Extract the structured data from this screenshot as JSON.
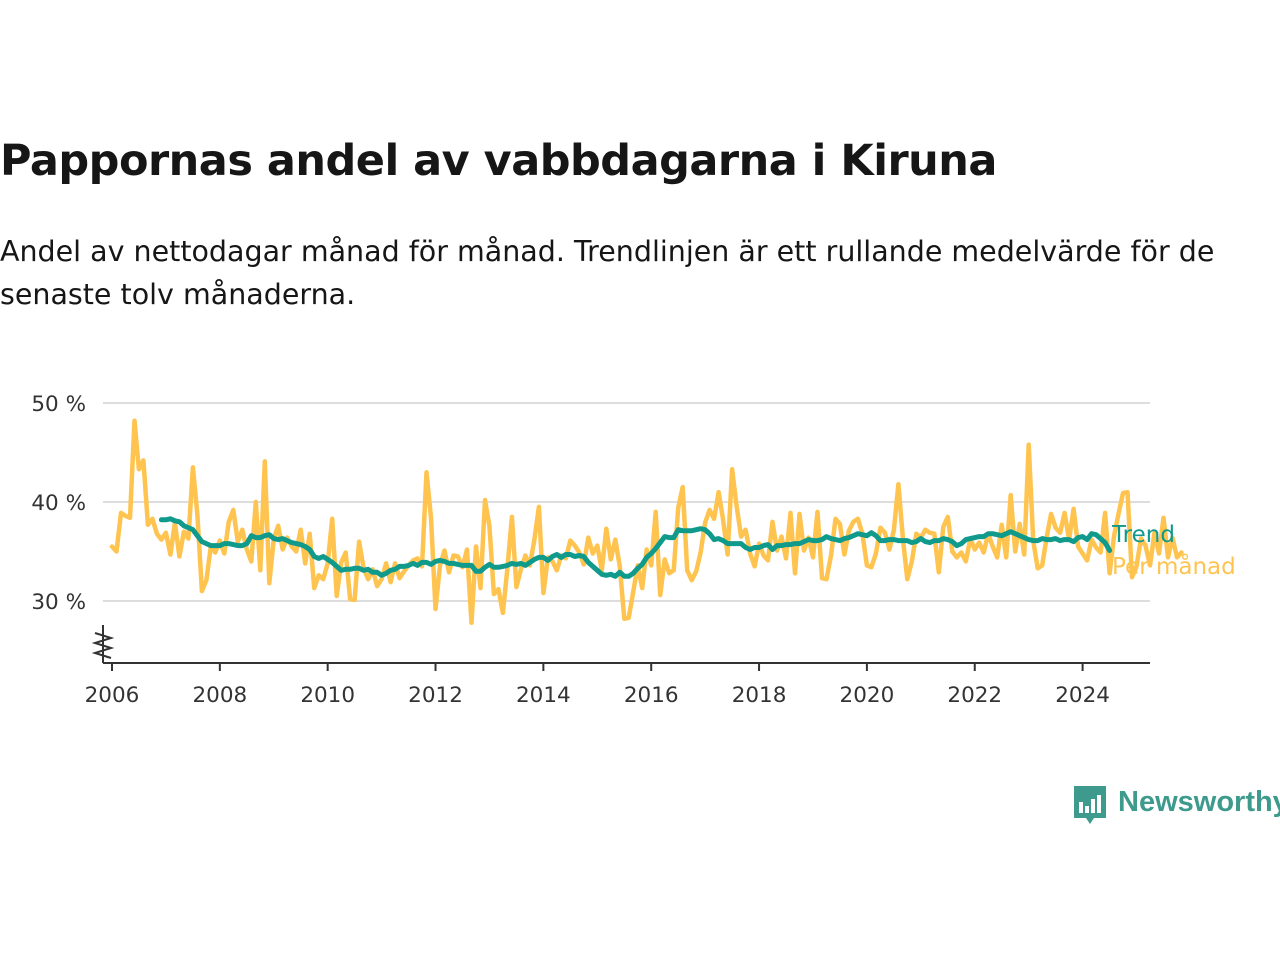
{
  "title": "Pappornas andel av vabbdagarna i Kiruna",
  "subtitle": "Andel av nettodagar månad för månad. Trendlinjen är ett rullande medelvärde för de senaste tolv månaderna.",
  "logo_text": "Newsworthy",
  "colors": {
    "trend": "#0f9a8c",
    "monthly": "#fec44f",
    "grid": "#dddddd",
    "axis": "#333333"
  },
  "chart_data": {
    "type": "line",
    "x_axis": {
      "ticks": [
        "2006",
        "2008",
        "2010",
        "2012",
        "2014",
        "2016",
        "2018",
        "2020",
        "2022",
        "2024"
      ],
      "range": [
        "2005-11",
        "2025-04"
      ]
    },
    "y_axis": {
      "ticks": [
        30,
        40,
        50
      ],
      "tick_labels": [
        "30 %",
        "40 %",
        "50 %"
      ],
      "range": [
        24,
        50
      ],
      "axis_break": true
    },
    "grid": true,
    "legend_position": "right, at line ends",
    "series": [
      {
        "name": "Per månad",
        "start": "2006-01",
        "values": [
          35.5,
          35.0,
          38.9,
          38.6,
          38.4,
          48.2,
          43.3,
          44.2,
          37.7,
          38.3,
          36.8,
          36.2,
          36.9,
          34.7,
          37.9,
          34.5,
          37.0,
          36.3,
          43.5,
          38.7,
          31.0,
          32.1,
          35.5,
          34.9,
          36.1,
          34.8,
          38.0,
          39.2,
          36.0,
          37.2,
          35.2,
          34.0,
          40.0,
          33.1,
          44.1,
          31.8,
          36.3,
          37.6,
          35.2,
          36.4,
          35.5,
          35.0,
          37.2,
          33.8,
          36.8,
          31.3,
          32.6,
          32.2,
          33.8,
          38.3,
          30.5,
          33.9,
          34.9,
          30.2,
          30.1,
          36.0,
          33.3,
          32.2,
          33.2,
          31.5,
          32.2,
          33.8,
          31.9,
          33.8,
          32.3,
          33.0,
          33.6,
          34.1,
          34.3,
          33.5,
          43.0,
          38.4,
          29.2,
          33.6,
          35.1,
          32.9,
          34.6,
          34.5,
          33.4,
          35.2,
          27.8,
          35.5,
          31.3,
          40.2,
          37.6,
          30.7,
          31.2,
          28.8,
          33.3,
          38.5,
          31.4,
          33.2,
          34.6,
          33.6,
          36.2,
          39.5,
          30.8,
          34.4,
          34.0,
          33.1,
          34.6,
          34.3,
          36.1,
          35.6,
          34.9,
          33.7,
          36.4,
          34.8,
          35.6,
          33.1,
          37.3,
          34.2,
          36.2,
          33.5,
          28.2,
          28.3,
          30.9,
          33.6,
          31.3,
          35.2,
          33.6,
          39.0,
          30.6,
          34.2,
          32.8,
          33.1,
          39.4,
          41.5,
          33.1,
          32.1,
          33.0,
          34.9,
          37.9,
          39.2,
          38.3,
          41.0,
          38.2,
          34.7,
          43.3,
          39.6,
          36.5,
          37.2,
          34.8,
          33.5,
          35.8,
          34.6,
          34.1,
          38.0,
          35.1,
          36.5,
          34.3,
          38.9,
          32.8,
          38.8,
          35.1,
          36.4,
          34.4,
          39.0,
          32.3,
          32.2,
          34.6,
          38.3,
          37.8,
          34.7,
          37.1,
          38.0,
          38.3,
          36.8,
          33.6,
          33.4,
          34.8,
          37.4,
          36.9,
          35.2,
          37.2,
          41.8,
          36.3,
          32.2,
          34.0,
          36.8,
          36.4,
          37.2,
          36.9,
          36.8,
          32.9,
          37.5,
          38.5,
          35.0,
          34.4,
          34.9,
          34.0,
          36.3,
          35.2,
          35.9,
          34.9,
          36.8,
          35.5,
          34.4,
          37.7,
          34.4,
          40.7,
          35.0,
          37.8,
          34.7,
          45.8,
          36.1,
          33.3,
          33.6,
          36.4,
          38.8,
          37.4,
          36.9,
          38.9,
          36.2,
          39.3,
          35.5,
          34.8,
          34.1,
          36.2,
          35.4,
          34.9,
          38.9,
          32.8,
          36.6,
          38.8,
          40.9,
          41.0,
          32.4,
          33.5,
          36.3,
          35.6,
          33.6,
          36.9,
          34.8,
          38.4,
          34.4,
          36.4,
          34.4,
          34.9
        ]
      },
      {
        "name": "Trend",
        "start": "2006-12",
        "values": [
          38.2,
          38.2,
          38.3,
          38.1,
          38.0,
          37.6,
          37.4,
          37.2,
          36.6,
          36.0,
          35.8,
          35.6,
          35.6,
          35.6,
          35.8,
          35.8,
          35.7,
          35.6,
          35.6,
          35.8,
          36.6,
          36.4,
          36.4,
          36.6,
          36.7,
          36.3,
          36.2,
          36.3,
          36.1,
          35.9,
          35.8,
          35.7,
          35.5,
          35.2,
          34.5,
          34.3,
          34.5,
          34.2,
          33.9,
          33.5,
          33.1,
          33.2,
          33.2,
          33.3,
          33.3,
          33.1,
          33.2,
          32.9,
          32.9,
          32.6,
          32.8,
          33.1,
          33.2,
          33.5,
          33.5,
          33.6,
          33.8,
          33.6,
          33.9,
          33.9,
          33.7,
          34.0,
          34.1,
          34.0,
          33.8,
          33.8,
          33.7,
          33.6,
          33.6,
          33.6,
          33.0,
          33.0,
          33.4,
          33.7,
          33.4,
          33.4,
          33.5,
          33.6,
          33.8,
          33.7,
          33.8,
          33.6,
          33.9,
          34.2,
          34.4,
          34.4,
          34.1,
          34.5,
          34.7,
          34.4,
          34.7,
          34.7,
          34.5,
          34.6,
          34.5,
          33.9,
          33.5,
          33.1,
          32.7,
          32.6,
          32.7,
          32.5,
          32.9,
          32.5,
          32.5,
          32.8,
          33.3,
          33.7,
          34.4,
          34.8,
          35.3,
          35.9,
          36.5,
          36.4,
          36.4,
          37.2,
          37.1,
          37.1,
          37.1,
          37.2,
          37.3,
          37.2,
          36.8,
          36.2,
          36.3,
          36.1,
          35.8,
          35.8,
          35.8,
          35.8,
          35.4,
          35.2,
          35.4,
          35.4,
          35.6,
          35.7,
          35.2,
          35.6,
          35.6,
          35.7,
          35.7,
          35.8,
          35.8,
          36.0,
          36.2,
          36.1,
          36.1,
          36.2,
          36.5,
          36.3,
          36.2,
          36.1,
          36.3,
          36.4,
          36.6,
          36.8,
          36.7,
          36.6,
          36.9,
          36.6,
          36.1,
          36.1,
          36.2,
          36.2,
          36.1,
          36.1,
          36.1,
          35.9,
          36.0,
          36.3,
          36.0,
          35.9,
          36.1,
          36.1,
          36.3,
          36.2,
          36.0,
          35.6,
          35.8,
          36.2,
          36.3,
          36.4,
          36.5,
          36.5,
          36.8,
          36.8,
          36.7,
          36.6,
          36.8,
          37.0,
          36.8,
          36.6,
          36.4,
          36.2,
          36.1,
          36.1,
          36.3,
          36.2,
          36.2,
          36.3,
          36.1,
          36.2,
          36.2,
          36.0,
          36.4,
          36.5,
          36.2,
          36.8,
          36.7,
          36.3,
          35.9,
          35.1
        ]
      }
    ]
  }
}
